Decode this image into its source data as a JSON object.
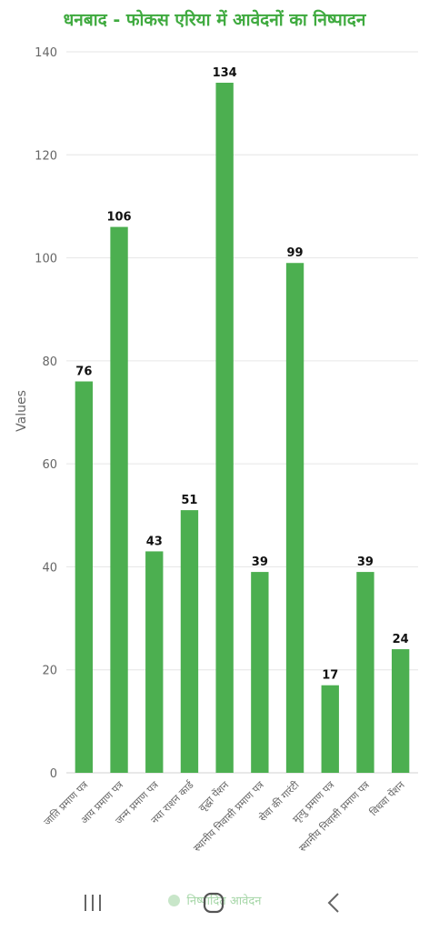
{
  "chart_data": {
    "type": "bar",
    "title": "धनबाद - फोकस एरिया में आवेदनों का निष्पादन",
    "ylabel": "Values",
    "xlabel": "",
    "ylim": [
      0,
      140
    ],
    "yticks": [
      0,
      20,
      40,
      60,
      80,
      100,
      120,
      140
    ],
    "grid": true,
    "legend_position": "bottom",
    "categories": [
      "जाति प्रमाण पत्र",
      "आय प्रमाण पत्र",
      "जन्म प्रमाण पत्र",
      "नया राशन कार्ड",
      "वृद्धा पेंशन",
      "स्थानीय निवासी प्रमाण पत्र",
      "सेवा की गारंटी",
      "मृत्यु प्रमाण पत्र",
      "स्थानीय निवासी प्रमाण पत्र",
      "विधवा पेंशन"
    ],
    "series": [
      {
        "name": "निष्पादित आवेदन",
        "color": "#4caf50",
        "values": [
          76,
          106,
          43,
          51,
          134,
          39,
          99,
          17,
          39,
          24
        ]
      }
    ]
  },
  "colors": {
    "bar": "#4caf50",
    "title": "#3faa3f",
    "grid": "#e6e6e6",
    "axis_text": "#666666",
    "value_label": "#111111"
  },
  "navbar": {
    "recent_icon": "recent-apps-icon",
    "home_icon": "home-icon",
    "back_icon": "back-icon"
  }
}
